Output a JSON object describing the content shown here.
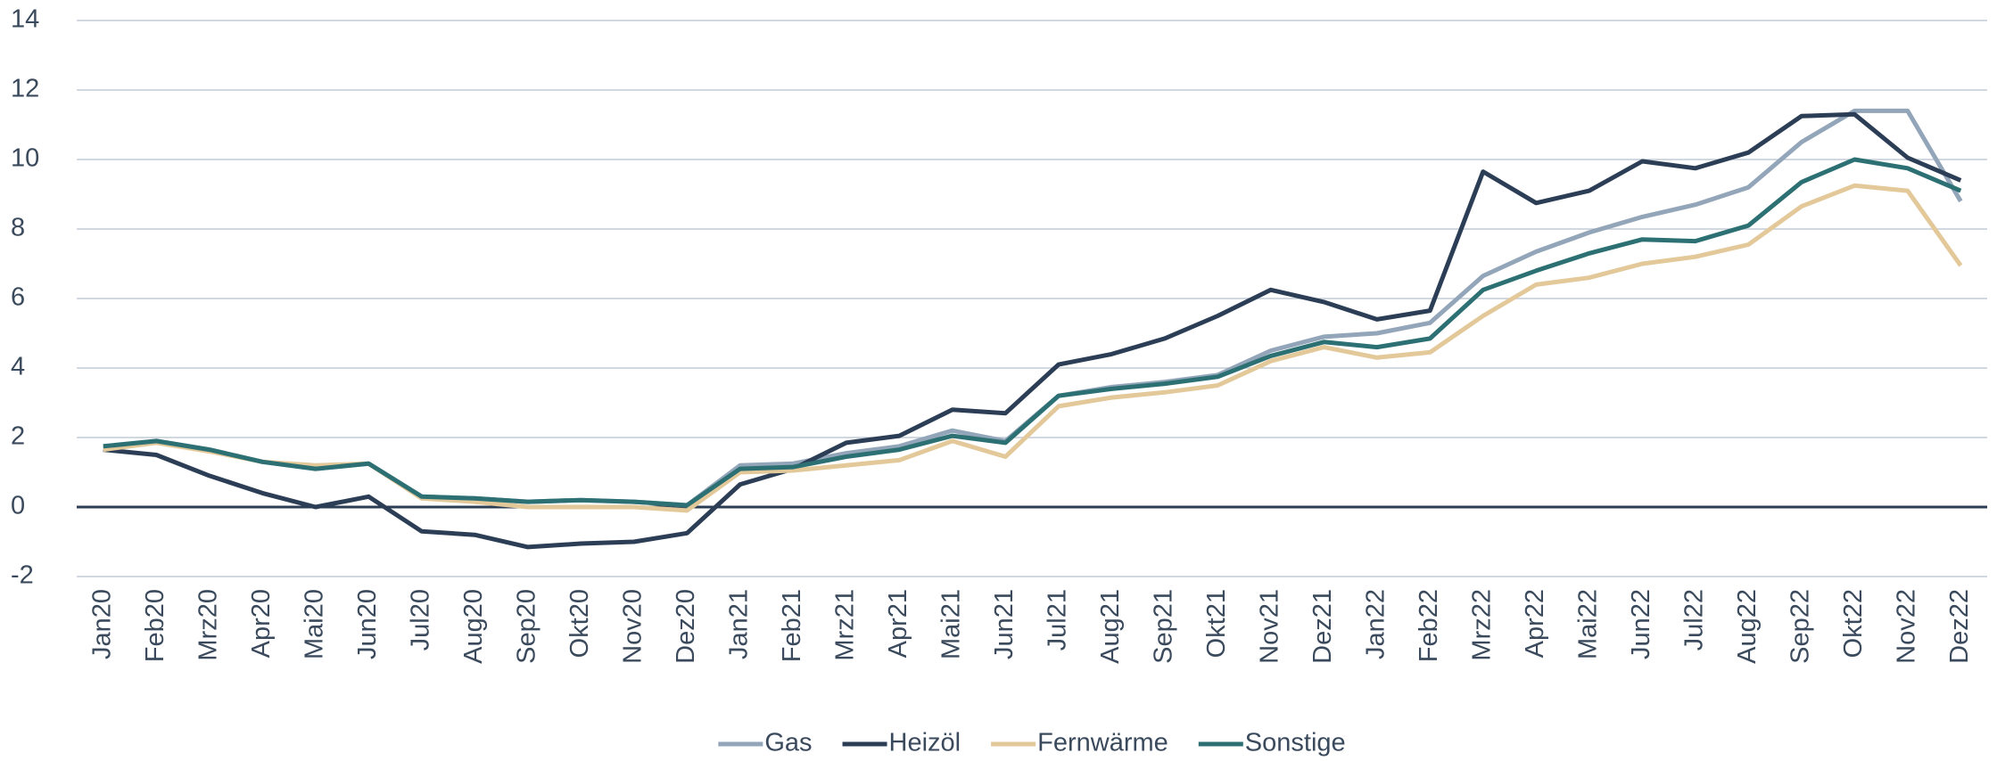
{
  "chart_data": {
    "type": "line",
    "categories": [
      "Jan20",
      "Feb20",
      "Mrz20",
      "Apr20",
      "Mai20",
      "Jun20",
      "Jul20",
      "Aug20",
      "Sep20",
      "Okt20",
      "Nov20",
      "Dez20",
      "Jan21",
      "Feb21",
      "Mrz21",
      "Apr21",
      "Mai21",
      "Jun21",
      "Jul21",
      "Aug21",
      "Sep21",
      "Okt21",
      "Nov21",
      "Dez21",
      "Jan22",
      "Feb22",
      "Mrz22",
      "Apr22",
      "Mai22",
      "Jun22",
      "Jul22",
      "Aug22",
      "Sep22",
      "Okt22",
      "Nov22",
      "Dez22"
    ],
    "series": [
      {
        "name": "Gas",
        "color": "#93a5b9",
        "values": [
          1.7,
          1.9,
          1.65,
          1.3,
          1.1,
          1.25,
          0.3,
          0.25,
          0.15,
          0.2,
          0.15,
          0.05,
          1.2,
          1.25,
          1.55,
          1.75,
          2.2,
          1.9,
          3.2,
          3.45,
          3.6,
          3.8,
          4.5,
          4.9,
          5.0,
          5.3,
          6.65,
          7.35,
          7.9,
          8.35,
          8.7,
          9.2,
          10.5,
          11.4,
          11.4,
          8.8
        ]
      },
      {
        "name": "Heizöl",
        "color": "#2c3e56",
        "values": [
          1.65,
          1.5,
          0.9,
          0.4,
          0.0,
          0.3,
          -0.7,
          -0.8,
          -1.15,
          -1.05,
          -1.0,
          -0.75,
          0.65,
          1.1,
          1.85,
          2.05,
          2.8,
          2.7,
          4.1,
          4.4,
          4.85,
          5.5,
          6.25,
          5.9,
          5.4,
          5.65,
          9.65,
          8.75,
          9.1,
          9.95,
          9.75,
          10.2,
          11.25,
          11.3,
          10.05,
          9.4
        ]
      },
      {
        "name": "Fernwärme",
        "color": "#e3c899",
        "values": [
          1.65,
          1.85,
          1.6,
          1.3,
          1.2,
          1.25,
          0.25,
          0.15,
          0.0,
          0.0,
          0.0,
          -0.1,
          1.0,
          1.05,
          1.2,
          1.35,
          1.9,
          1.45,
          2.9,
          3.15,
          3.3,
          3.5,
          4.2,
          4.6,
          4.3,
          4.45,
          5.5,
          6.4,
          6.6,
          7.0,
          7.2,
          7.55,
          8.65,
          9.25,
          9.1,
          6.95
        ]
      },
      {
        "name": "Sonstige",
        "color": "#2c7073",
        "values": [
          1.75,
          1.9,
          1.65,
          1.3,
          1.1,
          1.25,
          0.3,
          0.25,
          0.15,
          0.2,
          0.15,
          0.05,
          1.1,
          1.15,
          1.45,
          1.65,
          2.05,
          1.85,
          3.2,
          3.4,
          3.55,
          3.75,
          4.35,
          4.75,
          4.6,
          4.85,
          6.25,
          6.8,
          7.3,
          7.7,
          7.65,
          8.1,
          9.35,
          10.0,
          9.75,
          9.1
        ]
      }
    ],
    "ylim": [
      -2,
      14
    ],
    "yticks": [
      -2,
      0,
      2,
      4,
      6,
      8,
      10,
      12,
      14
    ],
    "grid": true,
    "legend": "bottom"
  }
}
